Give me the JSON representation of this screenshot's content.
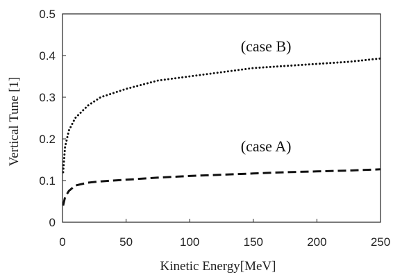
{
  "chart_data": {
    "type": "line",
    "title": "",
    "xlabel": "Kinetic  Energy[MeV]",
    "ylabel": "Vertical  Tune  [1]",
    "xlim": [
      0,
      250
    ],
    "ylim": [
      0,
      0.5
    ],
    "xticks": [
      0,
      50,
      100,
      150,
      200,
      250
    ],
    "yticks": [
      0,
      0.1,
      0.2,
      0.3,
      0.4,
      0.5
    ],
    "xtick_labels": [
      "0",
      "50",
      "100",
      "150",
      "200",
      "250"
    ],
    "ytick_labels": [
      "0",
      "0.1",
      "0.2",
      "0.3",
      "0.4",
      "0.5"
    ],
    "grid": false,
    "legend": "none",
    "series": [
      {
        "label": "(case B)",
        "style": "dotted",
        "color": "#111111",
        "x": [
          0.5,
          2,
          5,
          10,
          20,
          30,
          50,
          75,
          100,
          125,
          150,
          175,
          200,
          225,
          250
        ],
        "y": [
          0.12,
          0.18,
          0.22,
          0.25,
          0.28,
          0.3,
          0.32,
          0.34,
          0.35,
          0.36,
          0.37,
          0.375,
          0.38,
          0.385,
          0.393
        ]
      },
      {
        "label": "(case A)",
        "style": "dashed",
        "color": "#111111",
        "x": [
          0.5,
          2,
          5,
          10,
          20,
          30,
          50,
          75,
          100,
          125,
          150,
          175,
          200,
          225,
          250
        ],
        "y": [
          0.04,
          0.06,
          0.075,
          0.088,
          0.095,
          0.098,
          0.102,
          0.107,
          0.111,
          0.114,
          0.117,
          0.12,
          0.122,
          0.124,
          0.127
        ]
      }
    ],
    "annotations": [
      {
        "text": "(case B)",
        "x": 160,
        "y": 0.41
      },
      {
        "text": "(case A)",
        "x": 160,
        "y": 0.17
      }
    ]
  }
}
